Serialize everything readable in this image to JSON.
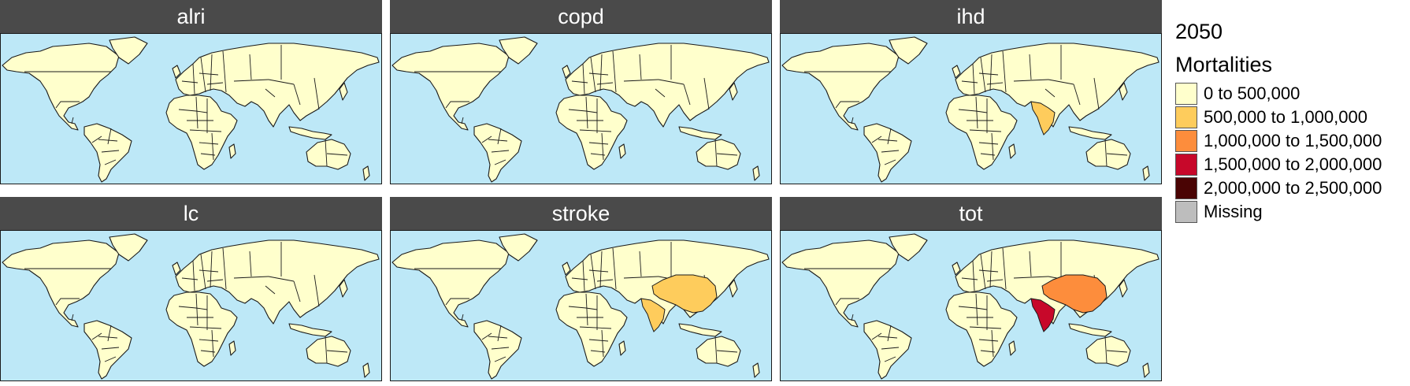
{
  "panels": [
    {
      "title": "alri",
      "highlights": []
    },
    {
      "title": "copd",
      "highlights": []
    },
    {
      "title": "ihd",
      "highlights": [
        {
          "country": "India",
          "class": 1
        }
      ]
    },
    {
      "title": "lc",
      "highlights": []
    },
    {
      "title": "stroke",
      "highlights": [
        {
          "country": "China",
          "class": 1
        },
        {
          "country": "India",
          "class": 1
        }
      ]
    },
    {
      "title": "tot",
      "highlights": [
        {
          "country": "China",
          "class": 2
        },
        {
          "country": "India",
          "class": 3
        }
      ]
    }
  ],
  "legend": {
    "year": "2050",
    "title": "Mortalities",
    "items": [
      {
        "label": "0 to 500,000",
        "color": "#ffffcc"
      },
      {
        "label": "500,000 to 1,000,000",
        "color": "#fecc5c"
      },
      {
        "label": "1,000,000 to 1,500,000",
        "color": "#fd8d3c"
      },
      {
        "label": "1,500,000 to 2,000,000",
        "color": "#c7082a"
      },
      {
        "label": "2,000,000 to 2,500,000",
        "color": "#4a0404"
      },
      {
        "label": "Missing",
        "color": "#bdbdbd"
      }
    ]
  },
  "colors": {
    "ocean": "#bde8f7",
    "base_land": "#ffffcc",
    "strip": "#4a4a4a"
  }
}
